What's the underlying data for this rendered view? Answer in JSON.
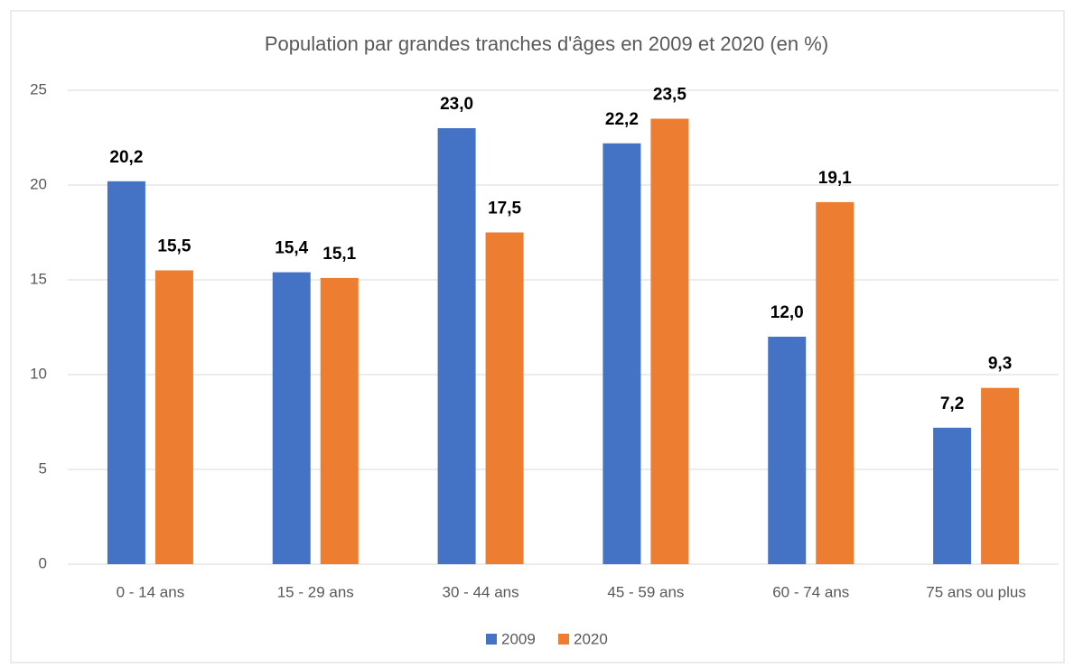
{
  "chart_data": {
    "type": "bar",
    "title": "Population par grandes tranches d'âges en 2009 et 2020 (en %)",
    "categories": [
      "0 - 14 ans",
      "15 - 29 ans",
      "30 - 44 ans",
      "45 - 59 ans",
      "60 - 74 ans",
      "75 ans ou plus"
    ],
    "series": [
      {
        "name": "2009",
        "color": "#4472c4",
        "values": [
          20.2,
          15.4,
          23.0,
          22.2,
          12.0,
          7.2
        ],
        "value_labels": [
          "20,2",
          "15,4",
          "23,0",
          "22,2",
          "12,0",
          "7,2"
        ]
      },
      {
        "name": "2020",
        "color": "#ed7d31",
        "values": [
          15.5,
          15.1,
          17.5,
          23.5,
          19.1,
          9.3
        ],
        "value_labels": [
          "15,5",
          "15,1",
          "17,5",
          "23,5",
          "19,1",
          "9,3"
        ]
      }
    ],
    "ylim": [
      0,
      25
    ],
    "yticks": [
      0,
      5,
      10,
      15,
      20,
      25
    ],
    "grid": true,
    "legend": "bottom"
  }
}
